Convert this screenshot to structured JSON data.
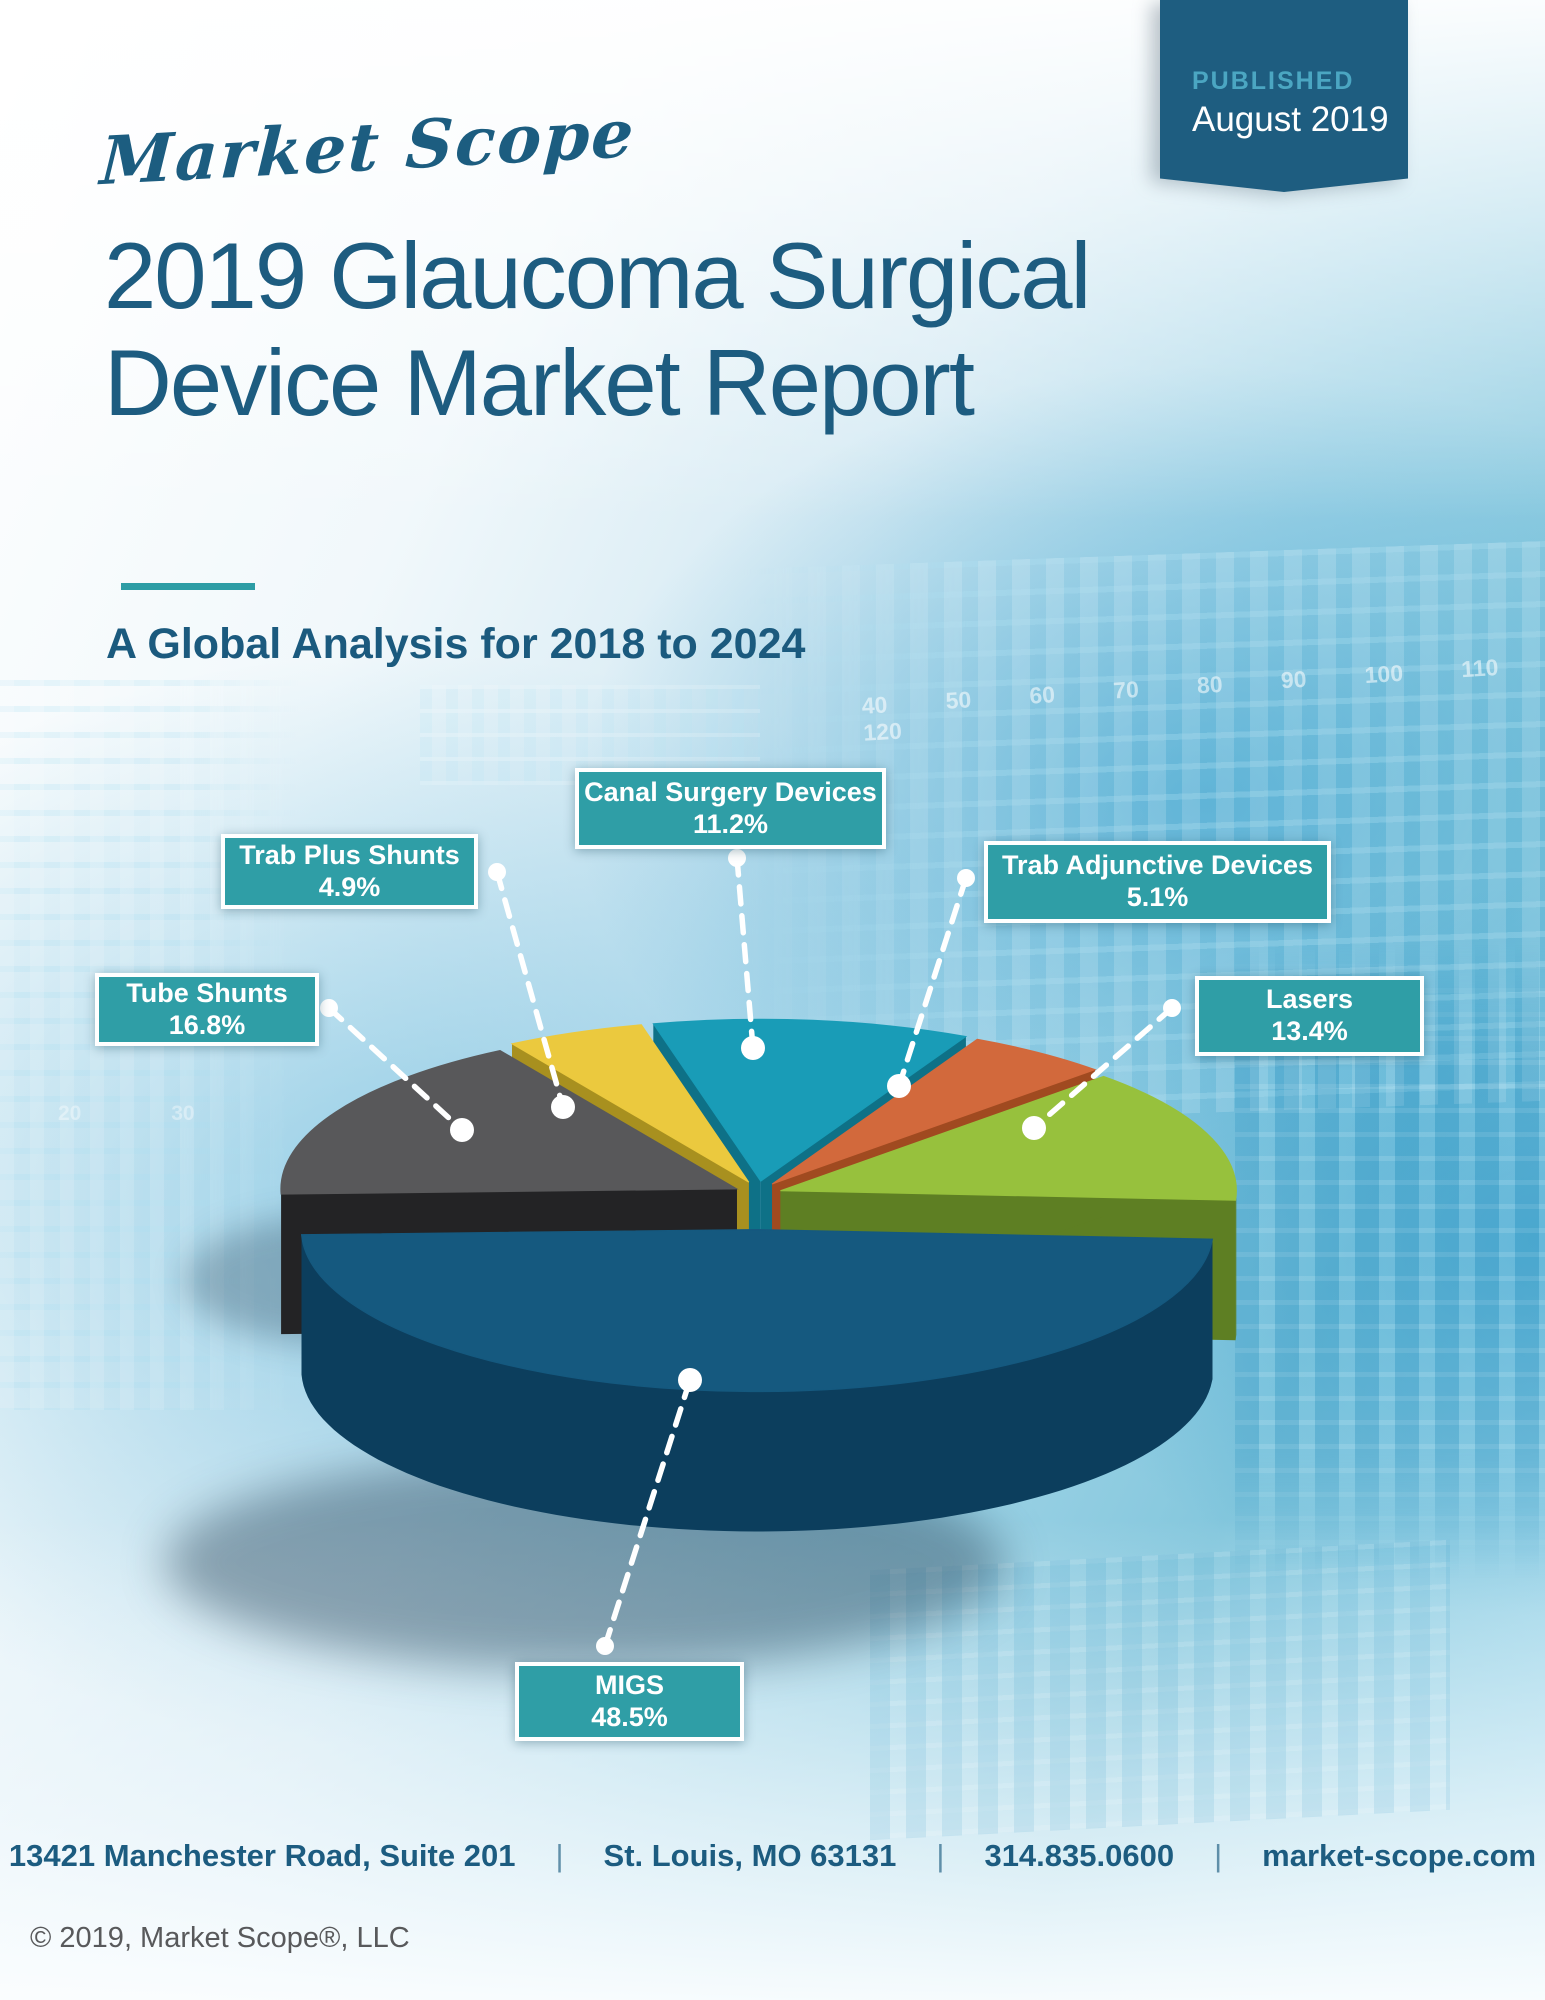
{
  "banner": {
    "published_label": "PUBLISHED",
    "date": "August 2019",
    "bg_color": "#1e5d80",
    "published_color": "#4ba6c2"
  },
  "logo": {
    "text": "Market Scope",
    "color": "#1c5d80"
  },
  "title": {
    "line1": "2019 Glaucoma Surgical",
    "line2": "Device Market Report",
    "color": "#1d5c80"
  },
  "subtitle": {
    "text": "A Global Analysis for 2018 to 2024",
    "color": "#1b5a7e",
    "divider_color": "#2d9da5"
  },
  "chart_data": {
    "type": "pie",
    "title": "Glaucoma surgical device market share by segment",
    "unit": "%",
    "legend_position": "callout-labels",
    "style": "3d-exploded",
    "slices": [
      {
        "label": "MIGS",
        "value": 48.5,
        "pct": "48.5%",
        "color": "#15597f",
        "side": "#0c3e5d"
      },
      {
        "label": "Lasers",
        "value": 13.4,
        "pct": "13.4%",
        "color": "#97c13d",
        "side": "#5e7f23"
      },
      {
        "label": "Trab Adjunctive Devices",
        "value": 5.1,
        "pct": "5.1%",
        "color": "#d2693c",
        "side": "#a04a20"
      },
      {
        "label": "Canal Surgery Devices",
        "value": 11.2,
        "pct": "11.2%",
        "color": "#199cb7",
        "side": "#0e7187"
      },
      {
        "label": "Trab Plus Shunts",
        "value": 4.9,
        "pct": "4.9%",
        "color": "#ebc93e",
        "side": "#a8901f"
      },
      {
        "label": "Tube Shunts",
        "value": 16.8,
        "pct": "16.8%",
        "color": "#58585a",
        "side": "#232325"
      }
    ],
    "label_box": {
      "bg": "#2f9ea6",
      "border": "#ffffff",
      "text_color": "#ffffff"
    }
  },
  "background": {
    "numbers_row": "40 50 60 70 80 90 100 110 120",
    "numbers_left": "20 30"
  },
  "footer": {
    "address": "13421 Manchester Road, Suite 201",
    "city": "St. Louis, MO 63131",
    "phone": "314.835.0600",
    "website": "market-scope.com",
    "separator": "|",
    "color": "#1c5c80"
  },
  "copyright": {
    "text": "© 2019, Market Scope®, LLC",
    "color": "#58595b"
  }
}
